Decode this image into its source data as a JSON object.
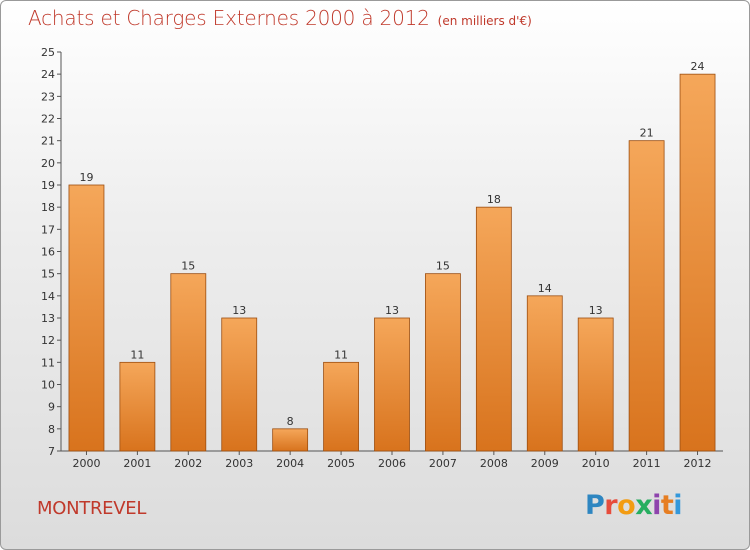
{
  "page": {
    "title": "Achats et Charges Externes 2000 à 2012",
    "unit": "(en milliers d'€)",
    "commune": "MONTREVEL",
    "logo": {
      "text": "Proxiti",
      "letters": [
        "P",
        "r",
        "o",
        "x",
        "i",
        "t",
        "i"
      ],
      "colors": [
        "#2e86c1",
        "#e74c3c",
        "#f39c12",
        "#27ae60",
        "#8e44ad",
        "#e67e22",
        "#3498db"
      ]
    },
    "colors": {
      "title": "#c0392b",
      "bar_top": "#f5a75a",
      "bar_bottom": "#d8731d",
      "bar_stroke": "#9c4e10"
    }
  },
  "chart_data": {
    "type": "bar",
    "title": "Achats et Charges Externes 2000 à 2012",
    "subtitle": "(en milliers d'€)",
    "xlabel": "",
    "ylabel": "",
    "categories": [
      "2000",
      "2001",
      "2002",
      "2003",
      "2004",
      "2005",
      "2006",
      "2007",
      "2008",
      "2009",
      "2010",
      "2011",
      "2012"
    ],
    "values": [
      19,
      11,
      15,
      13,
      8,
      11,
      13,
      15,
      18,
      14,
      13,
      21,
      24
    ],
    "ylim": [
      7,
      25
    ],
    "yticks": [
      7,
      8,
      9,
      10,
      11,
      12,
      13,
      14,
      15,
      16,
      17,
      18,
      19,
      20,
      21,
      22,
      23,
      24,
      25
    ],
    "grid": false,
    "data_labels": true
  }
}
